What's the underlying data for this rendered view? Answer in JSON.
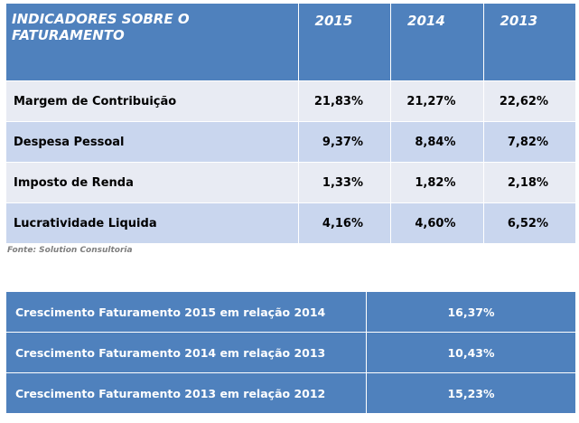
{
  "table1": {
    "header": {
      "label": "INDICADORES SOBRE O FATURAMENTO",
      "years": [
        "2015",
        "2014",
        "2013"
      ]
    },
    "rows": [
      {
        "label": "Margem de Contribuição",
        "values": [
          "21,83%",
          "21,27%",
          "22,62%"
        ]
      },
      {
        "label": "Despesa Pessoal",
        "values": [
          "9,37%",
          "8,84%",
          "7,82%"
        ]
      },
      {
        "label": "Imposto de Renda",
        "values": [
          "1,33%",
          "1,82%",
          "2,18%"
        ]
      },
      {
        "label": "Lucratividade Liquida",
        "values": [
          "4,16%",
          "4,60%",
          "6,52%"
        ]
      }
    ]
  },
  "source_note": "Fonte: Solution Consultoria",
  "table2": {
    "rows": [
      {
        "label": "Crescimento Faturamento 2015 em relação 2014",
        "value": "16,37%"
      },
      {
        "label": "Crescimento Faturamento 2014 em relação 2013",
        "value": "10,43%"
      },
      {
        "label": "Crescimento Faturamento 2013 em relação 2012",
        "value": "15,23%"
      }
    ]
  },
  "colors": {
    "header_blue": "#4f81bd",
    "row_light": "#e8ebf3",
    "row_dark": "#c9d6ee"
  }
}
